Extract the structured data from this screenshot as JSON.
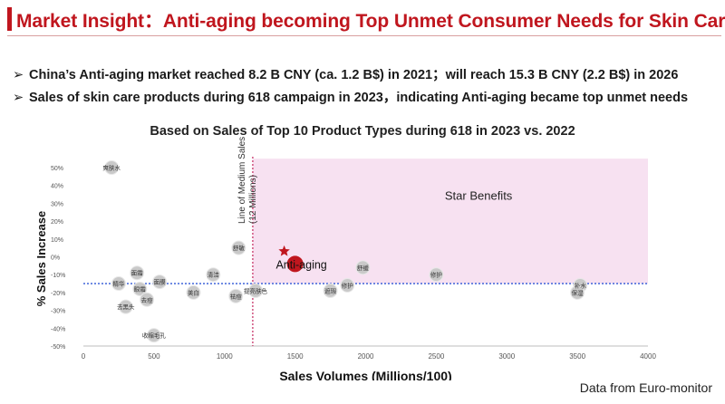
{
  "header": {
    "title": "Market Insight：Anti-aging becoming Top Unmet Consumer Needs for Skin Care"
  },
  "bullets": [
    "China’s Anti-aging market reached 8.2 B CNY (ca. 1.2 B$) in 2021；will reach 15.3 B CNY (2.2 B$) in 2026",
    "Sales of skin care products during 618 campaign in 2023，indicating Anti-aging became top unmet needs"
  ],
  "bullet_marker": "➢",
  "chart_data": {
    "type": "scatter",
    "title": "Based on Sales of Top 10 Product Types during 618 in 2023 vs. 2022",
    "xlabel": "Sales Volumes (Millions/100)",
    "ylabel": "% Sales Increase",
    "xlim": [
      0,
      4000
    ],
    "ylim": [
      -50,
      50
    ],
    "x_ticks": [
      0,
      500,
      1000,
      1500,
      2000,
      2500,
      3000,
      3500,
      4000
    ],
    "y_ticks": [
      50,
      40,
      30,
      20,
      10,
      0,
      -10,
      -20,
      -30,
      -40,
      -50
    ],
    "y_tick_suffix": "%",
    "reference_lines": {
      "vertical": {
        "x": 1200,
        "label": "Line of Medium Sales",
        "sublabel": "(12 Millions)"
      },
      "horizontal": {
        "y": -15
      }
    },
    "region": {
      "label": "Star Benefits",
      "x_from": 1200,
      "x_to": 4000,
      "y_from": -15,
      "y_to": 55
    },
    "points": [
      {
        "label": "爽肤水",
        "x": 200,
        "y": 50
      },
      {
        "label": "精华",
        "x": 250,
        "y": -15
      },
      {
        "label": "面霜",
        "x": 380,
        "y": -9
      },
      {
        "label": "眼霜",
        "x": 400,
        "y": -18
      },
      {
        "label": "去黑头",
        "x": 300,
        "y": -28
      },
      {
        "label": "去痘",
        "x": 450,
        "y": -24
      },
      {
        "label": "面膜",
        "x": 540,
        "y": -14
      },
      {
        "label": "收缩毛孔",
        "x": 500,
        "y": -44
      },
      {
        "label": "美白",
        "x": 780,
        "y": -20
      },
      {
        "label": "清洁",
        "x": 920,
        "y": -10
      },
      {
        "label": "祛痘",
        "x": 1080,
        "y": -22
      },
      {
        "label": "舒敏",
        "x": 1100,
        "y": 5
      },
      {
        "label": "提亮肤色",
        "x": 1220,
        "y": -19
      },
      {
        "label": "Anti-aging",
        "x": 1500,
        "y": -4,
        "highlight": true
      },
      {
        "label": "遮瑕",
        "x": 1750,
        "y": -19
      },
      {
        "label": "修护",
        "x": 1870,
        "y": -16
      },
      {
        "label": "舒缓",
        "x": 1980,
        "y": -6
      },
      {
        "label": "修护",
        "x": 2500,
        "y": -10
      },
      {
        "label": "补水",
        "x": 3520,
        "y": -16
      },
      {
        "label": "保湿",
        "x": 3500,
        "y": -20
      }
    ],
    "colors": {
      "highlight": "#c0161e",
      "point": "#c9c9c9",
      "region": "#f7e1f1",
      "accent_line": "#c8376a",
      "blue_line": "#2f56d6"
    }
  },
  "footer": {
    "source": "Data from Euro-monitor"
  }
}
